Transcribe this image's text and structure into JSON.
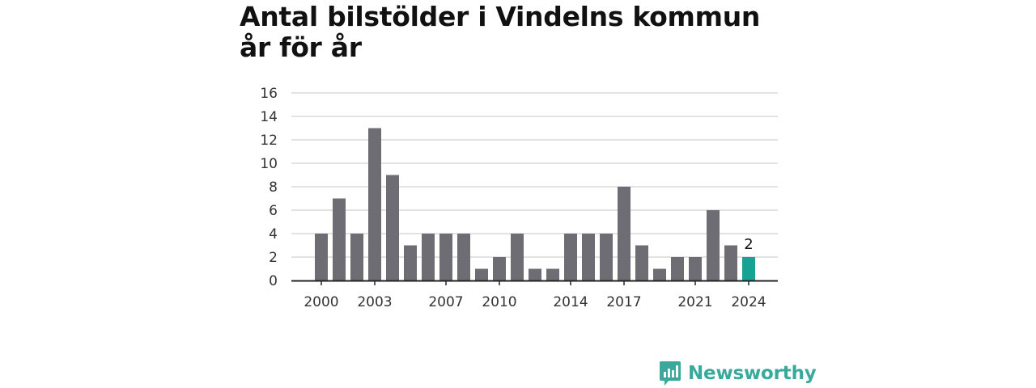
{
  "chart_data": {
    "type": "bar",
    "title": "Antal bilstölder i Vindelns kommun år för år",
    "xlabel": "",
    "ylabel": "",
    "categories": [
      "2000",
      "2001",
      "2002",
      "2003",
      "2004",
      "2005",
      "2006",
      "2007",
      "2008",
      "2009",
      "2010",
      "2011",
      "2012",
      "2013",
      "2014",
      "2015",
      "2016",
      "2017",
      "2018",
      "2019",
      "2020",
      "2021",
      "2022",
      "2023",
      "2024"
    ],
    "values": [
      4,
      7,
      4,
      13,
      9,
      3,
      4,
      4,
      4,
      1,
      2,
      4,
      1,
      1,
      4,
      4,
      4,
      8,
      3,
      1,
      2,
      2,
      6,
      3,
      2
    ],
    "x_tick_labels": [
      "2000",
      "2003",
      "2007",
      "2010",
      "2014",
      "2017",
      "2021",
      "2024"
    ],
    "y_ticks": [
      "0",
      "2",
      "4",
      "6",
      "8",
      "10",
      "12",
      "14",
      "16"
    ],
    "ylim": [
      0,
      16
    ],
    "grid": true,
    "legend": "none",
    "highlight": {
      "category": "2024",
      "label": "2"
    },
    "colors": {
      "bar": "#6e6d73",
      "highlight": "#17a394",
      "grid": "#d9d9d9",
      "axis": "#222222"
    }
  },
  "branding": {
    "name": "Newsworthy",
    "icon": "newsworthy-logo-icon",
    "color": "#3aa99c"
  }
}
